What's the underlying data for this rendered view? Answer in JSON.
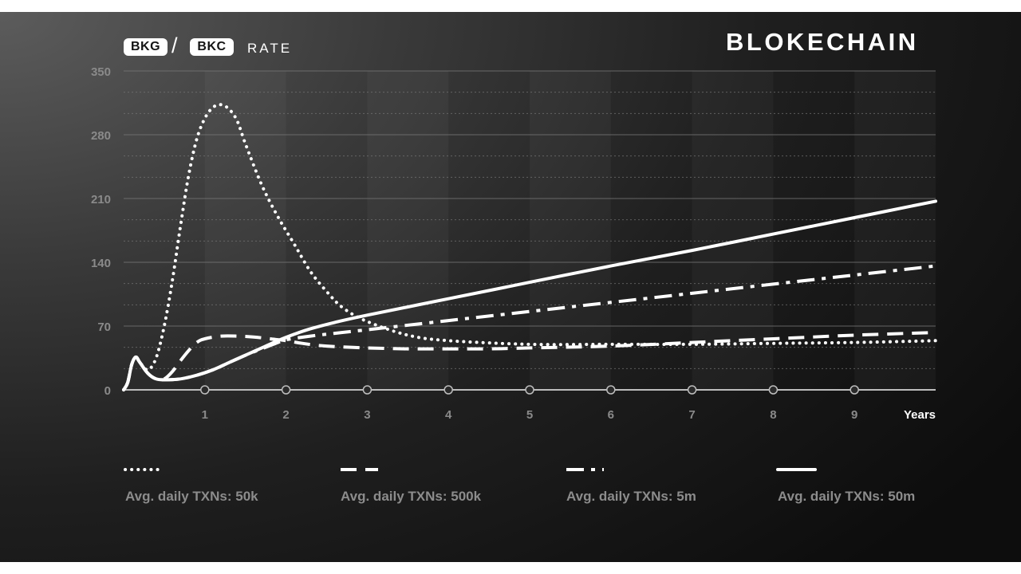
{
  "header": {
    "base_token": "BKG",
    "separator": "/",
    "quote_token": "BKC",
    "rate_label": "RATE",
    "brand": "BLOKECHAIN"
  },
  "colors": {
    "line": "#ffffff",
    "axis": "#bdbdbd",
    "grid": "#777777",
    "tick_label": "#8a8a8a",
    "legend_label": "#8c8c8c"
  },
  "chart_data": {
    "type": "line",
    "title": "",
    "xlabel": "Years",
    "ylabel": "",
    "xlim": [
      0,
      10
    ],
    "ylim": [
      0,
      350
    ],
    "y_ticks": [
      0,
      70,
      140,
      210,
      280,
      350
    ],
    "x_ticks": [
      1,
      2,
      3,
      4,
      5,
      6,
      7,
      8,
      9
    ],
    "grid": true,
    "series": [
      {
        "name": "Avg. daily TXNs: 50k",
        "style": "dotted",
        "points": [
          [
            0,
            0
          ],
          [
            0.05,
            8
          ],
          [
            0.1,
            28
          ],
          [
            0.15,
            36
          ],
          [
            0.2,
            30
          ],
          [
            0.3,
            22
          ],
          [
            0.4,
            35
          ],
          [
            0.5,
            70
          ],
          [
            0.6,
            120
          ],
          [
            0.7,
            180
          ],
          [
            0.8,
            235
          ],
          [
            0.9,
            275
          ],
          [
            1.0,
            298
          ],
          [
            1.1,
            310
          ],
          [
            1.2,
            313
          ],
          [
            1.3,
            308
          ],
          [
            1.4,
            295
          ],
          [
            1.5,
            270
          ],
          [
            1.7,
            225
          ],
          [
            1.9,
            190
          ],
          [
            2.1,
            160
          ],
          [
            2.3,
            130
          ],
          [
            2.5,
            108
          ],
          [
            2.7,
            90
          ],
          [
            3.0,
            75
          ],
          [
            3.5,
            60
          ],
          [
            4.0,
            54
          ],
          [
            5.0,
            50
          ],
          [
            6.0,
            50
          ],
          [
            7.0,
            50
          ],
          [
            8.0,
            51
          ],
          [
            9.0,
            52
          ],
          [
            10.0,
            54
          ]
        ]
      },
      {
        "name": "Avg. daily TXNs: 500k",
        "style": "dashed",
        "points": [
          [
            0,
            0
          ],
          [
            0.05,
            8
          ],
          [
            0.1,
            28
          ],
          [
            0.15,
            36
          ],
          [
            0.2,
            30
          ],
          [
            0.3,
            18
          ],
          [
            0.4,
            12
          ],
          [
            0.5,
            12
          ],
          [
            0.6,
            20
          ],
          [
            0.7,
            32
          ],
          [
            0.8,
            43
          ],
          [
            0.9,
            52
          ],
          [
            1.0,
            56
          ],
          [
            1.2,
            59
          ],
          [
            1.4,
            59
          ],
          [
            1.6,
            58
          ],
          [
            1.8,
            56
          ],
          [
            2.0,
            54
          ],
          [
            2.2,
            51
          ],
          [
            2.5,
            48
          ],
          [
            3.0,
            46
          ],
          [
            3.5,
            45
          ],
          [
            4.0,
            45
          ],
          [
            4.5,
            45
          ],
          [
            5.0,
            46
          ],
          [
            6.0,
            48
          ],
          [
            7.0,
            52
          ],
          [
            8.0,
            56
          ],
          [
            9.0,
            60
          ],
          [
            10.0,
            63
          ]
        ]
      },
      {
        "name": "Avg. daily TXNs: 5m",
        "style": "dashdot",
        "points": [
          [
            0,
            0
          ],
          [
            0.05,
            8
          ],
          [
            0.1,
            28
          ],
          [
            0.15,
            36
          ],
          [
            0.2,
            30
          ],
          [
            0.3,
            18
          ],
          [
            0.4,
            12
          ],
          [
            0.5,
            11
          ],
          [
            0.7,
            12
          ],
          [
            0.9,
            16
          ],
          [
            1.1,
            22
          ],
          [
            1.3,
            30
          ],
          [
            1.5,
            38
          ],
          [
            1.7,
            45
          ],
          [
            1.9,
            52
          ],
          [
            2.0,
            55
          ],
          [
            2.3,
            59
          ],
          [
            2.6,
            62
          ],
          [
            3.0,
            66
          ],
          [
            4.0,
            76
          ],
          [
            5.0,
            86
          ],
          [
            6.0,
            96
          ],
          [
            7.0,
            106
          ],
          [
            8.0,
            116
          ],
          [
            9.0,
            126
          ],
          [
            10.0,
            136
          ]
        ]
      },
      {
        "name": "Avg. daily TXNs: 50m",
        "style": "solid",
        "points": [
          [
            0,
            0
          ],
          [
            0.05,
            8
          ],
          [
            0.1,
            28
          ],
          [
            0.15,
            36
          ],
          [
            0.2,
            30
          ],
          [
            0.3,
            18
          ],
          [
            0.4,
            12
          ],
          [
            0.5,
            11
          ],
          [
            0.7,
            12
          ],
          [
            0.9,
            16
          ],
          [
            1.1,
            22
          ],
          [
            1.3,
            30
          ],
          [
            1.5,
            38
          ],
          [
            1.7,
            46
          ],
          [
            1.9,
            54
          ],
          [
            2.1,
            61
          ],
          [
            2.3,
            67
          ],
          [
            2.6,
            74
          ],
          [
            3.0,
            82
          ],
          [
            4.0,
            100
          ],
          [
            5.0,
            118
          ],
          [
            6.0,
            136
          ],
          [
            7.0,
            153
          ],
          [
            8.0,
            171
          ],
          [
            9.0,
            189
          ],
          [
            10.0,
            207
          ]
        ]
      }
    ]
  }
}
